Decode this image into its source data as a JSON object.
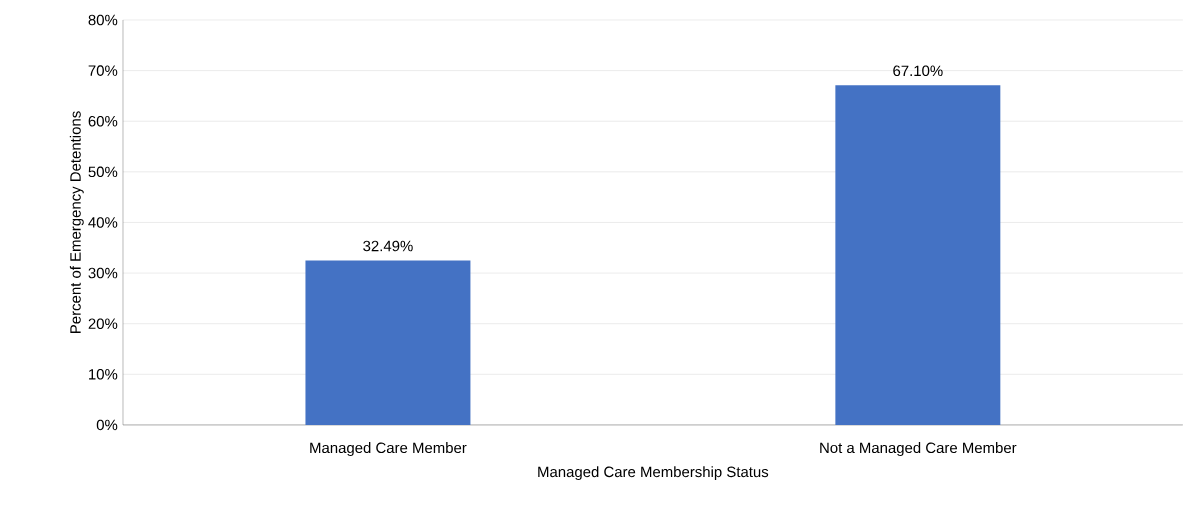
{
  "chart_data": {
    "type": "bar",
    "xlabel": "Managed Care Membership Status",
    "ylabel": "Percent of Emergency Detentions",
    "categories": [
      "Managed Care Member",
      "Not a Managed Care Member"
    ],
    "values": [
      32.49,
      67.1
    ],
    "value_labels": [
      "32.49%",
      "67.10%"
    ],
    "color": "#4472c4",
    "ylim": [
      0,
      80
    ],
    "yticks": [
      {
        "value": 0,
        "label": "0%"
      },
      {
        "value": 10,
        "label": "10%"
      },
      {
        "value": 20,
        "label": "20%"
      },
      {
        "value": 30,
        "label": "30%"
      },
      {
        "value": 40,
        "label": "40%"
      },
      {
        "value": 50,
        "label": "50%"
      },
      {
        "value": 60,
        "label": "60%"
      },
      {
        "value": 70,
        "label": "70%"
      },
      {
        "value": 80,
        "label": "80%"
      }
    ],
    "grid": "y"
  }
}
